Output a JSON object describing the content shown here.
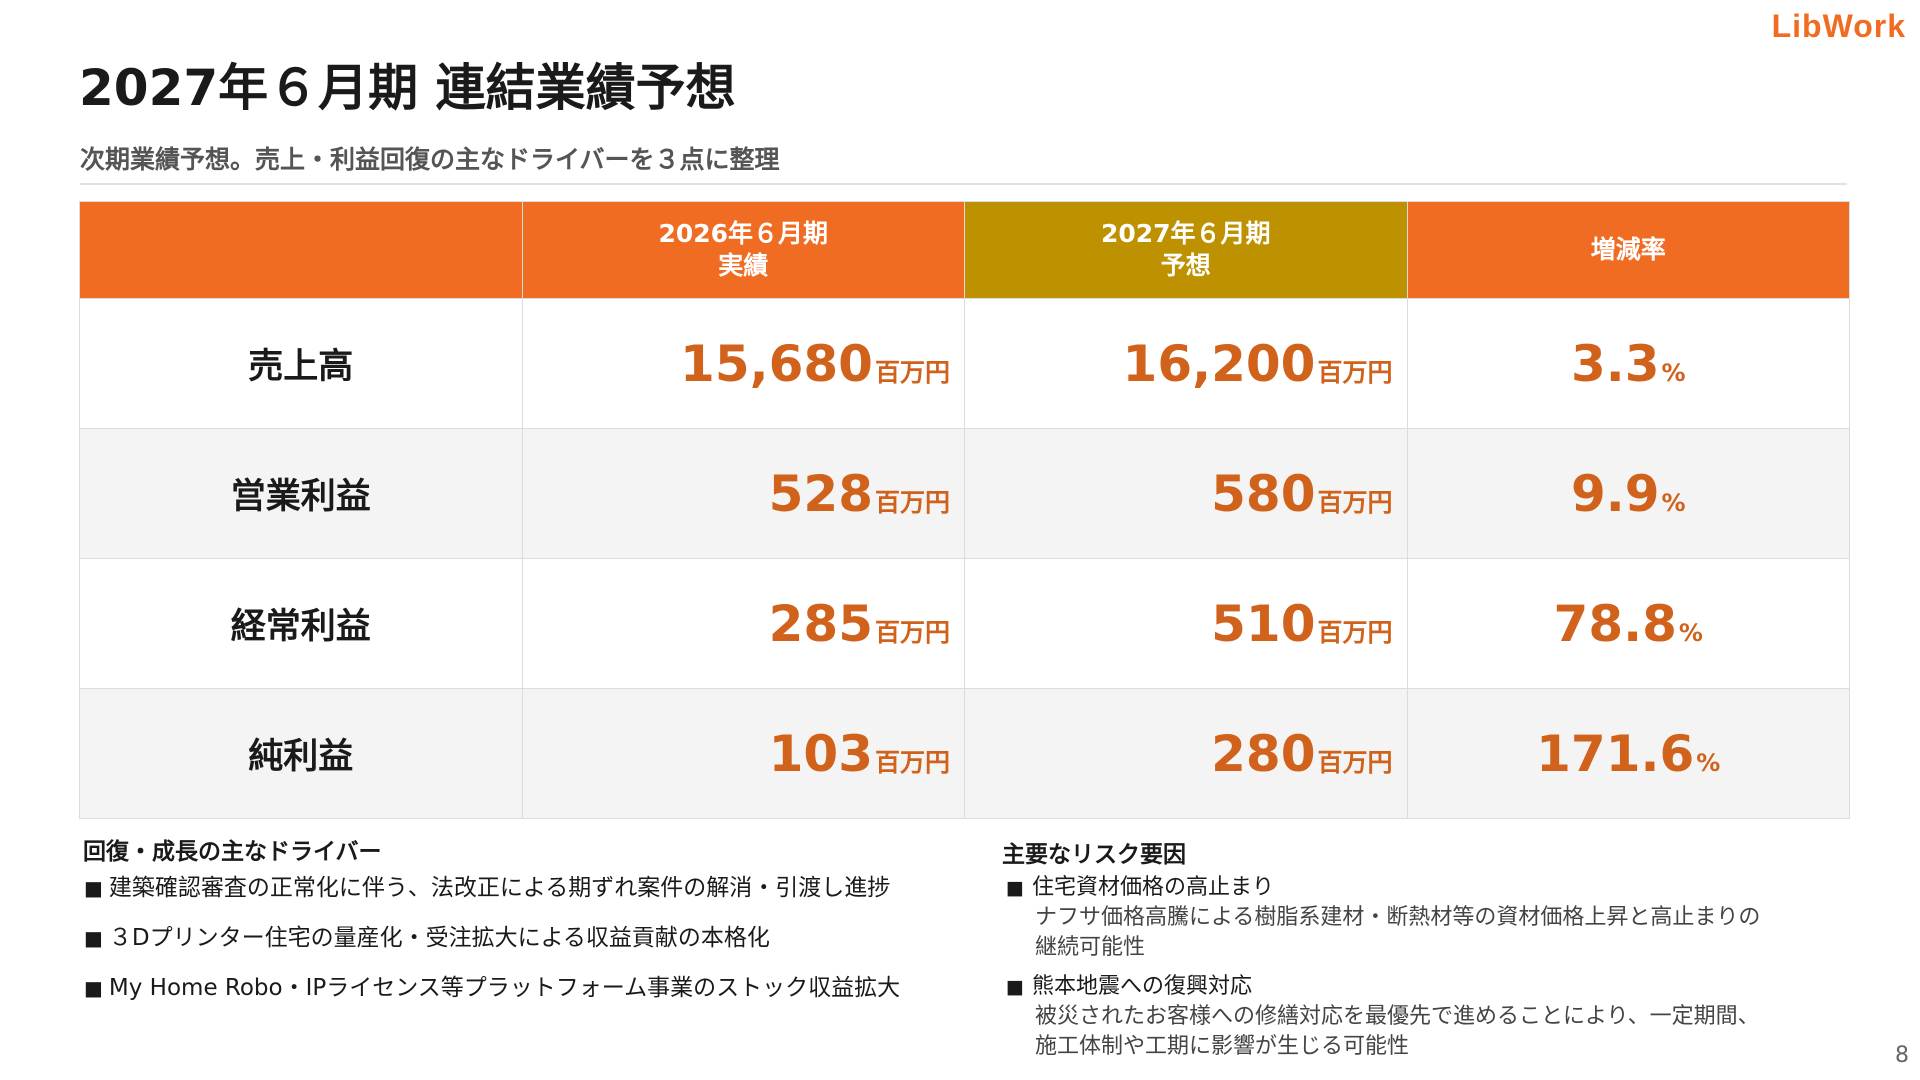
{
  "logo": "LibWork",
  "title": "2027年６月期 連結業績予想",
  "subtitle": "次期業績予想。売上・利益回復の主なドライバーを３点に整理",
  "table": {
    "headers": [
      "",
      "2026年６月期\n実績",
      "2027年６月期\n予想",
      "増減率"
    ],
    "unit": "百万円",
    "pct_unit": "%",
    "rows": [
      {
        "label": "売上高",
        "actual": "15,680",
        "forecast": "16,200",
        "rate": "3.3"
      },
      {
        "label": "営業利益",
        "actual": "528",
        "forecast": "580",
        "rate": "9.9"
      },
      {
        "label": "経常利益",
        "actual": "285",
        "forecast": "510",
        "rate": "78.8"
      },
      {
        "label": "純利益",
        "actual": "103",
        "forecast": "280",
        "rate": "171.6"
      }
    ]
  },
  "drivers": {
    "title": "回復・成長の主なドライバー",
    "items": [
      "建築確認審査の正常化に伴う、法改正による期ずれ案件の解消・引渡し進捗",
      "３Dプリンター住宅の量産化・受注拡大による収益貢献の本格化",
      "My Home Robo・IPライセンス等プラットフォーム事業のストック収益拡大"
    ]
  },
  "risks": {
    "title": "主要なリスク要因",
    "items": [
      {
        "head": "住宅資材価格の高止まり",
        "body1": "ナフサ価格高騰による樹脂系建材・断熱材等の資材価格上昇と高止まりの",
        "body2": "継続可能性"
      },
      {
        "head": "熊本地震への復興対応",
        "body1": "被災されたお客様への修繕対応を最優先で進めることにより、一定期間、",
        "body2": "施工体制や工期に影響が生じる可能性"
      }
    ]
  },
  "bullet_mark": "■",
  "page_number": "8",
  "colors": {
    "accent": "#f06c23",
    "highlight": "#bd9100",
    "value": "#d0621c"
  }
}
